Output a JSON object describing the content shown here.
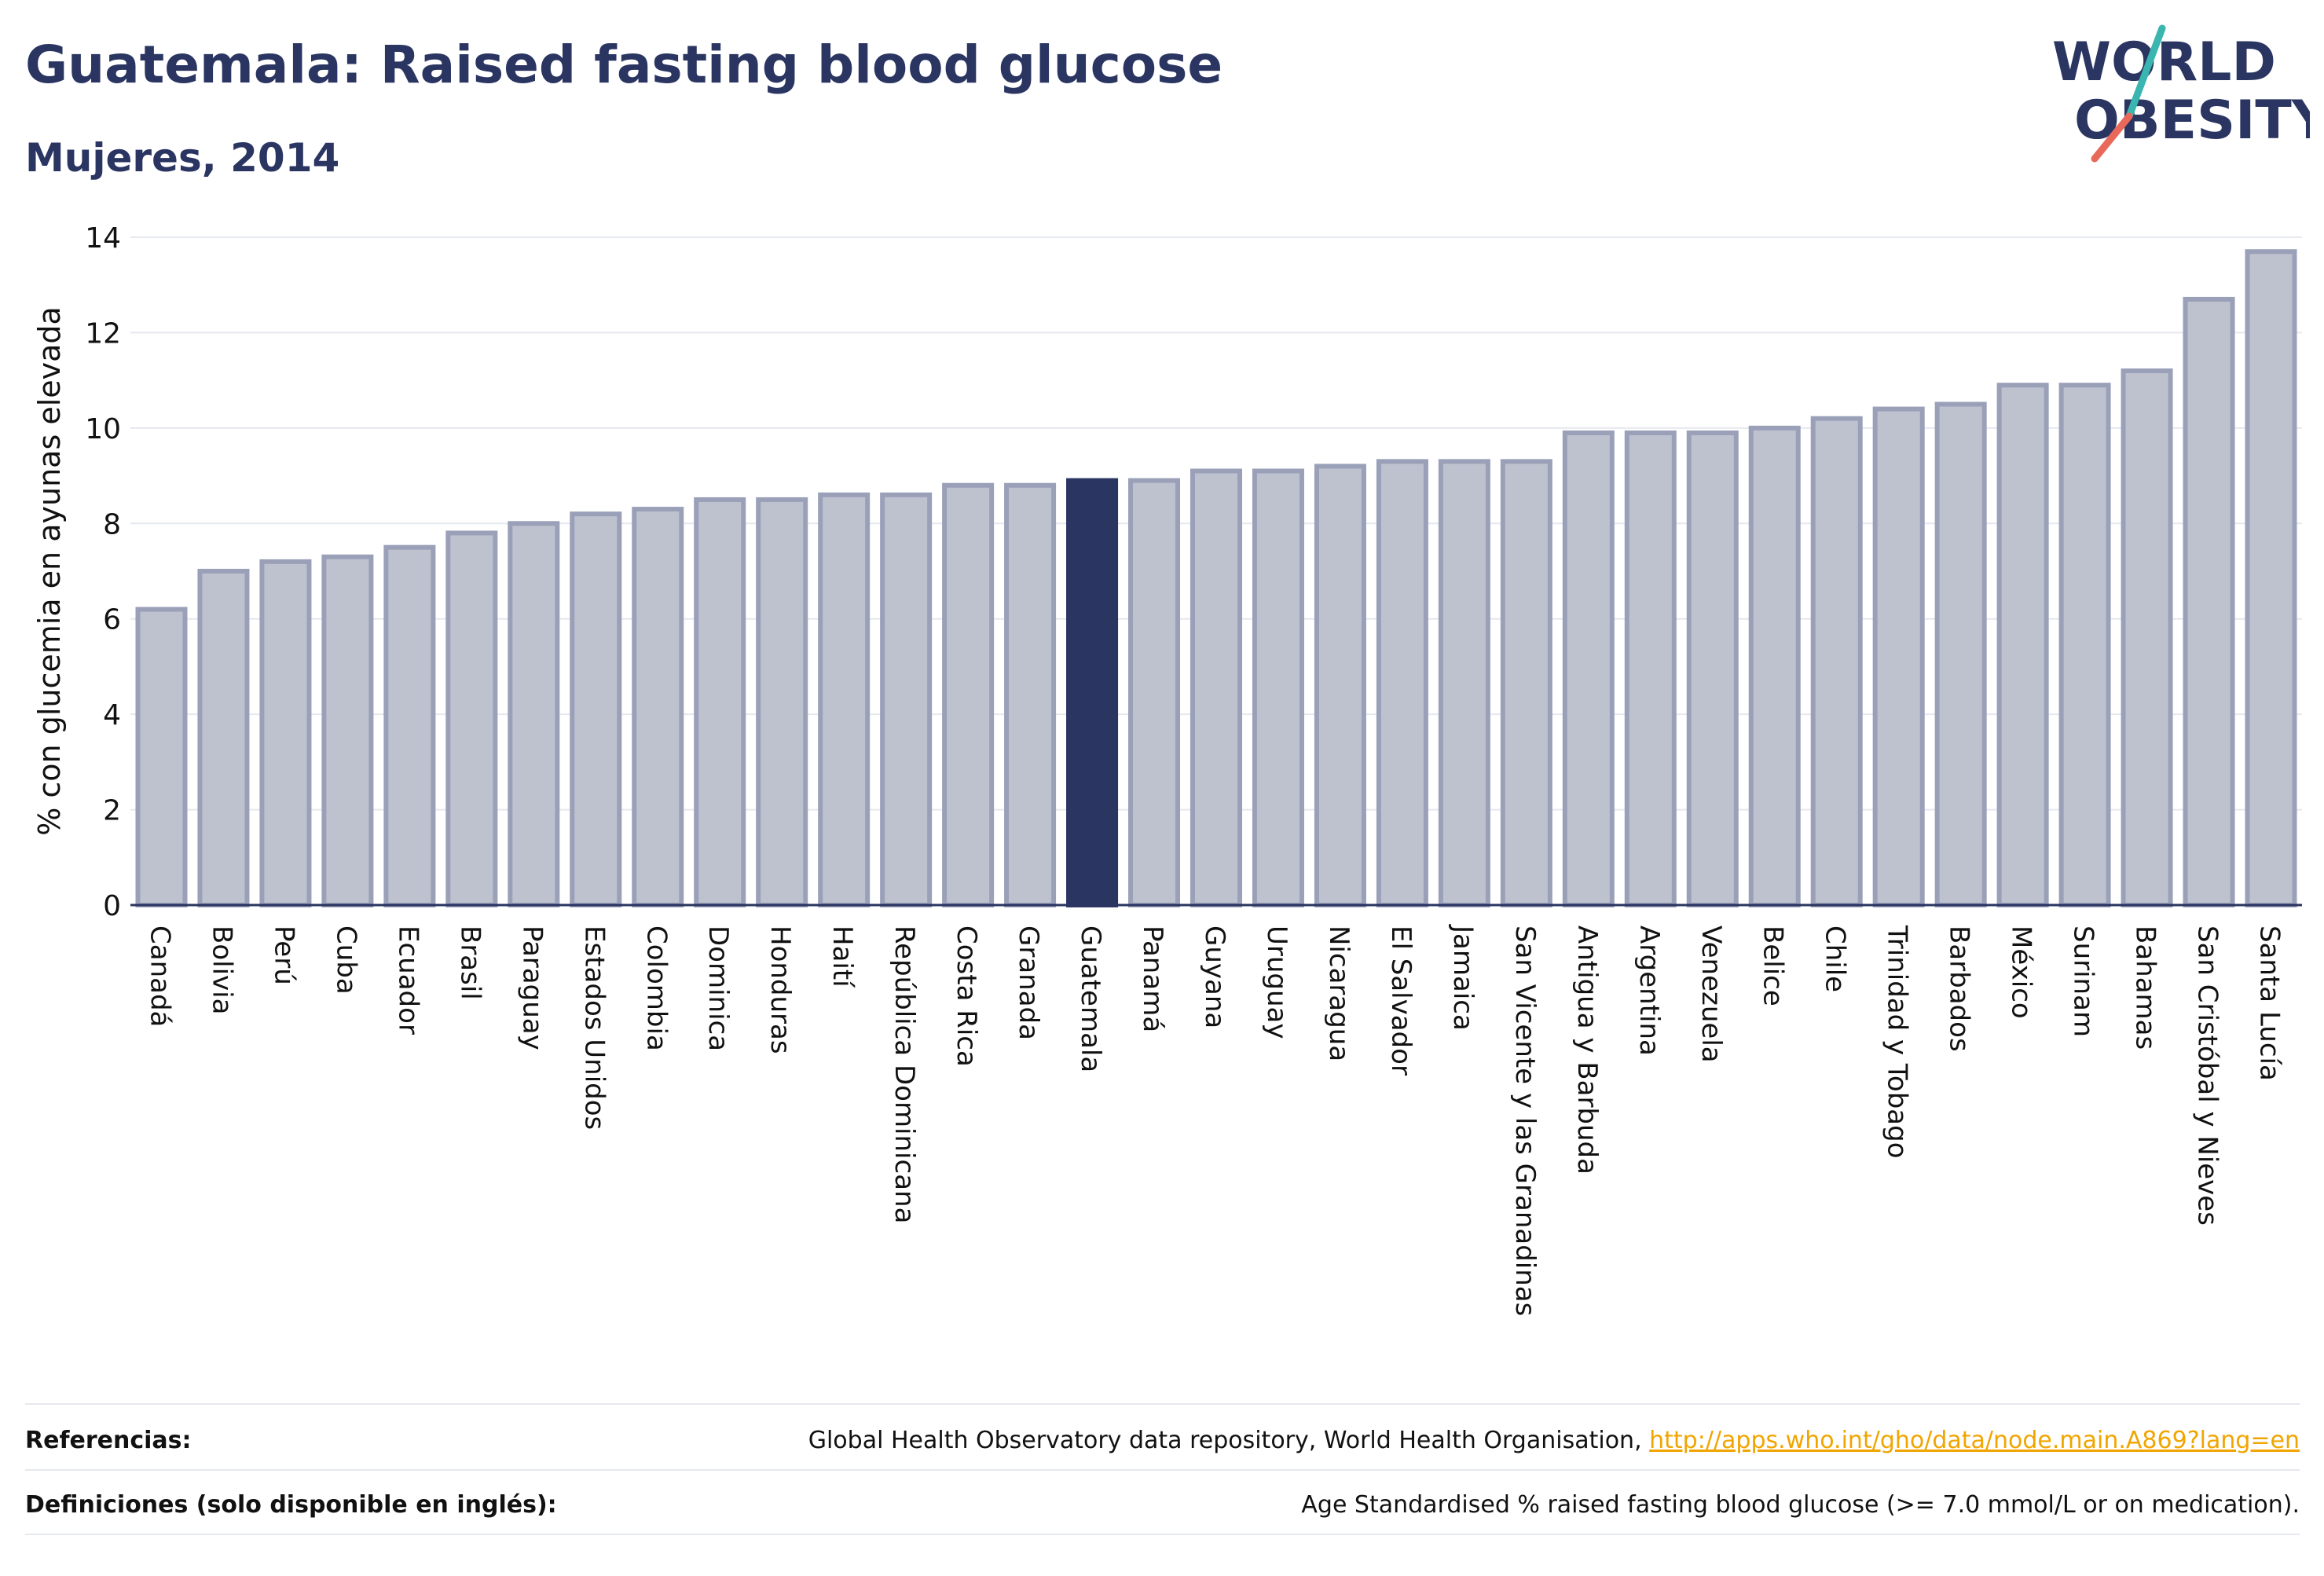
{
  "header": {
    "title": "Guatemala: Raised fasting blood glucose",
    "subtitle": "Mujeres, 2014"
  },
  "logo": {
    "line1": "WORLD",
    "line2": "OBESITY",
    "text_color": "#2a3561",
    "slash_color_top": "#3ab5b0",
    "slash_color_bottom": "#e8695a"
  },
  "chart_data": {
    "type": "bar",
    "ylabel": "% con glucemia en ayunas elevada",
    "xlabel": "",
    "ylim": [
      0,
      14
    ],
    "yticks": [
      0,
      2,
      4,
      6,
      8,
      10,
      12,
      14
    ],
    "grid": true,
    "highlight": "Guatemala",
    "colors": {
      "bar": "#bec2cf",
      "bar_edge": "#9aa0b8",
      "highlight": "#2a3561"
    },
    "categories": [
      "Canadá",
      "Bolivia",
      "Perú",
      "Cuba",
      "Ecuador",
      "Brasil",
      "Paraguay",
      "Estados Unidos",
      "Colombia",
      "Dominica",
      "Honduras",
      "Haití",
      "República Dominicana",
      "Costa Rica",
      "Granada",
      "Guatemala",
      "Panamá",
      "Guyana",
      "Uruguay",
      "Nicaragua",
      "El Salvador",
      "Jamaica",
      "San Vicente y las Granadinas",
      "Antigua y Barbuda",
      "Argentina",
      "Venezuela",
      "Belice",
      "Chile",
      "Trinidad y Tobago",
      "Barbados",
      "México",
      "Surinam",
      "Bahamas",
      "San Cristóbal y Nieves",
      "Santa Lucía"
    ],
    "values": [
      6.2,
      7.0,
      7.2,
      7.3,
      7.5,
      7.8,
      8.0,
      8.2,
      8.3,
      8.5,
      8.5,
      8.6,
      8.6,
      8.8,
      8.8,
      8.9,
      8.9,
      9.1,
      9.1,
      9.2,
      9.3,
      9.3,
      9.3,
      9.9,
      9.9,
      9.9,
      10.0,
      10.2,
      10.4,
      10.5,
      10.9,
      10.9,
      11.2,
      12.7,
      13.7
    ]
  },
  "footer": {
    "references_label": "Referencias:",
    "references_text": "Global Health Observatory data repository, World Health Organisation, ",
    "references_link": "http://apps.who.int/gho/data/node.main.A869?lang=en",
    "definitions_label": "Definiciones (solo disponible en inglés):",
    "definitions_text": "Age Standardised % raised fasting blood glucose (>= 7.0 mmol/L or on medication)."
  }
}
